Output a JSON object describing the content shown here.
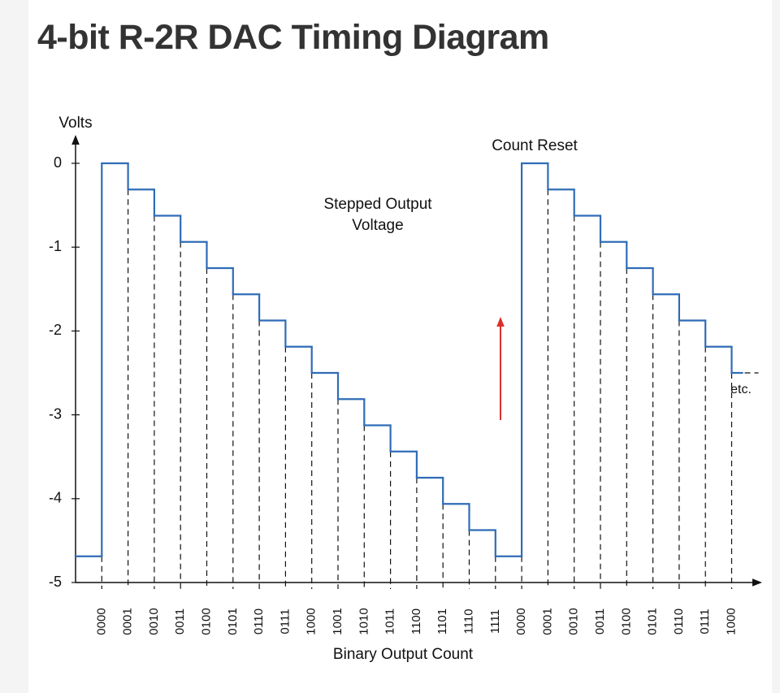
{
  "page_title": "4-bit R-2R DAC Timing Diagram",
  "chart_data": {
    "type": "step",
    "y_label": "Volts",
    "x_label": "Binary Output Count",
    "annotations": [
      "Stepped Output",
      "Voltage",
      "Count Reset",
      "etc."
    ],
    "categories": [
      null,
      "0000",
      "0001",
      "0010",
      "0011",
      "0100",
      "0101",
      "0110",
      "0111",
      "1000",
      "1001",
      "1010",
      "1011",
      "1100",
      "1101",
      "1110",
      "1111",
      "0000",
      "0001",
      "0010",
      "0011",
      "0100",
      "0101",
      "0110",
      "0111",
      "1000"
    ],
    "values": [
      -4.6875,
      0,
      -0.3125,
      -0.625,
      -0.9375,
      -1.25,
      -1.5625,
      -1.875,
      -2.1875,
      -2.5,
      -2.8125,
      -3.125,
      -3.4375,
      -3.75,
      -4.0625,
      -4.375,
      -4.6875,
      0,
      -0.3125,
      -0.625,
      -0.9375,
      -1.25,
      -1.5625,
      -1.875,
      -2.1875,
      -2.5
    ],
    "color": "#2f6cb6",
    "label_color": "#d9302c",
    "ylim": [
      -5,
      0
    ],
    "yticks": [
      0,
      -1,
      -2,
      -3,
      -4,
      -5
    ]
  }
}
